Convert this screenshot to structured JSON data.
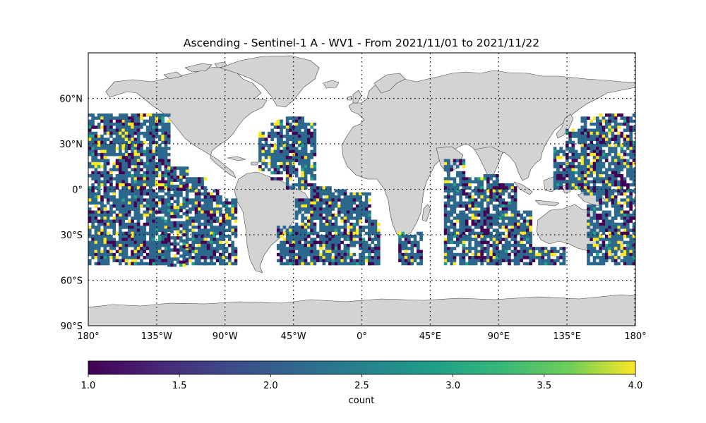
{
  "title": "Ascending - Sentinel-1 A - WV1 - From 2021/11/01 to 2021/11/22",
  "map": {
    "projection": "PlateCarree",
    "lon_range": [
      -180,
      180
    ],
    "lat_range": [
      -90,
      90
    ],
    "land_color": "#d3d3d3",
    "coastline_color": "#333333",
    "gridlines": "dotted",
    "lon_ticks": [
      {
        "value": -180,
        "label": "180°"
      },
      {
        "value": -135,
        "label": "135°W"
      },
      {
        "value": -90,
        "label": "90°W"
      },
      {
        "value": -45,
        "label": "45°W"
      },
      {
        "value": 0,
        "label": "0°"
      },
      {
        "value": 45,
        "label": "45°E"
      },
      {
        "value": 90,
        "label": "90°E"
      },
      {
        "value": 135,
        "label": "135°E"
      },
      {
        "value": 180,
        "label": "180°"
      }
    ],
    "lat_ticks": [
      {
        "value": 60,
        "label": "60°N"
      },
      {
        "value": 30,
        "label": "30°N"
      },
      {
        "value": 0,
        "label": "0°"
      },
      {
        "value": -30,
        "label": "30°S"
      },
      {
        "value": -60,
        "label": "60°S"
      },
      {
        "value": -90,
        "label": "90°S"
      }
    ]
  },
  "colorbar": {
    "label": "count",
    "colormap": "viridis",
    "range": [
      1.0,
      4.0
    ],
    "ticks": [
      {
        "value": 1.0,
        "label": "1.0"
      },
      {
        "value": 1.5,
        "label": "1.5"
      },
      {
        "value": 2.0,
        "label": "2.0"
      },
      {
        "value": 2.5,
        "label": "2.5"
      },
      {
        "value": 3.0,
        "label": "3.0"
      },
      {
        "value": 3.5,
        "label": "3.5"
      },
      {
        "value": 4.0,
        "label": "4.0"
      }
    ]
  },
  "chart_data": {
    "type": "heatmap",
    "title": "Ascending - Sentinel-1 A - WV1 - From 2021/11/01 to 2021/11/22",
    "xlim": [
      -180,
      180
    ],
    "ylim": [
      -90,
      90
    ],
    "value_range": [
      1,
      4
    ],
    "cell_size_deg": 2,
    "value_colors": {
      "1": "#440154",
      "2": "#2c688e",
      "3": "#20a386",
      "4": "#fde725"
    },
    "tracks": [
      {
        "lon_west": -180,
        "lon_east": -168,
        "lat_south": -50,
        "lat_north": 50
      },
      {
        "lon_west": -170,
        "lon_east": -154,
        "lat_south": -50,
        "lat_north": 50
      },
      {
        "lon_west": -160,
        "lon_east": -146,
        "lat_south": -50,
        "lat_north": 50
      },
      {
        "lon_west": -150,
        "lon_east": -136,
        "lat_south": -50,
        "lat_north": 50
      },
      {
        "lon_west": -140,
        "lon_east": -126,
        "lat_south": -50,
        "lat_north": 50
      },
      {
        "lon_west": -128,
        "lon_east": -114,
        "lat_south": -50,
        "lat_north": 15
      },
      {
        "lon_west": -116,
        "lon_east": -102,
        "lat_south": -50,
        "lat_north": 8
      },
      {
        "lon_west": -104,
        "lon_east": -92,
        "lat_south": -50,
        "lat_north": 0
      },
      {
        "lon_west": -94,
        "lon_east": -82,
        "lat_south": -50,
        "lat_north": -6
      },
      {
        "lon_west": -68,
        "lon_east": -58,
        "lat_south": 12,
        "lat_north": 38
      },
      {
        "lon_west": -60,
        "lon_east": -48,
        "lat_south": 6,
        "lat_north": 46
      },
      {
        "lon_west": -50,
        "lon_east": -36,
        "lat_south": 0,
        "lat_north": 48
      },
      {
        "lon_west": -40,
        "lon_east": -30,
        "lat_south": 0,
        "lat_north": 44
      },
      {
        "lon_west": -56,
        "lon_east": -40,
        "lat_south": -50,
        "lat_north": -24
      },
      {
        "lon_west": -44,
        "lon_east": -30,
        "lat_south": -50,
        "lat_north": -6
      },
      {
        "lon_west": -34,
        "lon_east": -20,
        "lat_south": -50,
        "lat_north": 2
      },
      {
        "lon_west": -24,
        "lon_east": -10,
        "lat_south": -50,
        "lat_north": 0
      },
      {
        "lon_west": -12,
        "lon_east": 6,
        "lat_south": -50,
        "lat_north": -2
      },
      {
        "lon_west": 4,
        "lon_east": 12,
        "lat_south": -50,
        "lat_north": -20
      },
      {
        "lon_west": 24,
        "lon_east": 40,
        "lat_south": -50,
        "lat_north": -28
      },
      {
        "lon_west": 54,
        "lon_east": 68,
        "lat_south": -50,
        "lat_north": 20
      },
      {
        "lon_west": 66,
        "lon_east": 80,
        "lat_south": -50,
        "lat_north": 8
      },
      {
        "lon_west": 78,
        "lon_east": 90,
        "lat_south": -50,
        "lat_north": 10
      },
      {
        "lon_west": 88,
        "lon_east": 102,
        "lat_south": -50,
        "lat_north": 4
      },
      {
        "lon_west": 100,
        "lon_east": 112,
        "lat_south": -50,
        "lat_north": -14
      },
      {
        "lon_west": 112,
        "lon_east": 134,
        "lat_south": -50,
        "lat_north": -38
      },
      {
        "lon_west": 126,
        "lon_east": 140,
        "lat_south": 0,
        "lat_north": 28
      },
      {
        "lon_west": 134,
        "lon_east": 148,
        "lat_south": 0,
        "lat_north": 40
      },
      {
        "lon_west": 144,
        "lon_east": 158,
        "lat_south": -4,
        "lat_north": 48
      },
      {
        "lon_west": 154,
        "lon_east": 168,
        "lat_south": -12,
        "lat_north": 50
      },
      {
        "lon_west": 166,
        "lon_east": 180,
        "lat_south": -50,
        "lat_north": 50
      },
      {
        "lon_west": 148,
        "lon_east": 158,
        "lat_south": -50,
        "lat_north": -10
      },
      {
        "lon_west": 158,
        "lon_east": 168,
        "lat_south": -50,
        "lat_north": -14
      }
    ]
  }
}
